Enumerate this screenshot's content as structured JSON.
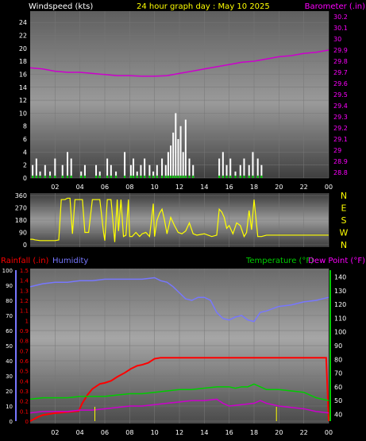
{
  "colors": {
    "background": "#000000",
    "title_yellow": "#ffff00",
    "wind_label": "#ffffff",
    "barometer": "#cc00cc",
    "barometer_axis": "#ff00ff",
    "humidity": "#7777ff",
    "rainfall": "#ff0000",
    "temperature": "#00cc00",
    "dewpoint": "#cc00cc",
    "wind_bars": "#ffffff",
    "gust_green": "#00cc00",
    "direction": "#ffff00"
  },
  "header": {
    "wind_label": "Windspeed (kts)",
    "title": "24 hour graph day : May 10 2025",
    "baro_label": "Barometer (.in)"
  },
  "bottom_header": {
    "rain_label": "Rainfall (.in)",
    "humidity_label": "Humidity",
    "temp_label": "Temperature (°F)",
    "dew_label": "Dew Point (°F)"
  },
  "chart_data": [
    {
      "type": "bar",
      "panel": "wind_baro",
      "x_ticks": [
        "02",
        "04",
        "06",
        "08",
        "10",
        "12",
        "14",
        "16",
        "18",
        "20",
        "22",
        "00"
      ],
      "y_left": {
        "label": "Windspeed (kts)",
        "ticks": [
          "0",
          "2",
          "4",
          "6",
          "8",
          "10",
          "12",
          "14",
          "16",
          "18",
          "20",
          "22",
          "24"
        ],
        "ylim": [
          0,
          25
        ]
      },
      "y_right": {
        "label": "Barometer (.in)",
        "ticks": [
          "28.8",
          "28.9",
          "29",
          "29.1",
          "29.2",
          "29.3",
          "29.4",
          "29.5",
          "29.6",
          "29.7",
          "29.8",
          "29.9",
          "30",
          "30.1",
          "30.2"
        ],
        "ylim": [
          28.75,
          30.25
        ]
      },
      "series": [
        {
          "name": "Windspeed (kts)",
          "kind": "bars",
          "x_hours": [
            0.2,
            0.5,
            0.8,
            1.2,
            1.6,
            2.0,
            2.6,
            3.0,
            3.3,
            4.1,
            4.4,
            5.3,
            5.6,
            6.2,
            6.5,
            6.9,
            7.6,
            8.1,
            8.3,
            8.6,
            8.9,
            9.2,
            9.6,
            9.9,
            10.2,
            10.6,
            10.9,
            11.1,
            11.3,
            11.5,
            11.7,
            11.9,
            12.1,
            12.3,
            12.5,
            12.8,
            13.1,
            15.2,
            15.5,
            15.8,
            16.1,
            16.5,
            16.9,
            17.2,
            17.6,
            17.9,
            18.3,
            18.6
          ],
          "values": [
            2,
            3,
            1,
            2,
            1,
            3,
            2,
            4,
            3,
            1,
            2,
            2,
            1,
            3,
            2,
            1,
            4,
            2,
            3,
            1,
            2,
            3,
            2,
            1,
            2,
            3,
            2,
            4,
            5,
            7,
            10,
            6,
            8,
            4,
            9,
            3,
            2,
            3,
            4,
            2,
            3,
            1,
            2,
            3,
            2,
            4,
            3,
            2
          ]
        },
        {
          "name": "Barometer (.in)",
          "kind": "line",
          "x_hours": [
            0,
            1,
            2,
            3,
            4,
            5,
            6,
            7,
            8,
            9,
            10,
            11,
            12,
            13,
            14,
            15,
            16,
            17,
            18,
            19,
            20,
            21,
            22,
            23,
            24
          ],
          "values": [
            29.74,
            29.73,
            29.71,
            29.7,
            29.7,
            29.69,
            29.68,
            29.67,
            29.67,
            29.665,
            29.665,
            29.67,
            29.69,
            29.71,
            29.73,
            29.75,
            29.77,
            29.79,
            29.8,
            29.82,
            29.84,
            29.85,
            29.87,
            29.88,
            29.9
          ]
        }
      ]
    },
    {
      "type": "line",
      "panel": "direction",
      "y_left_ticks": [
        "0",
        "90",
        "180",
        "270",
        "360"
      ],
      "y_right_labels": [
        "N",
        "W",
        "S",
        "E",
        "N"
      ],
      "ylim": [
        0,
        360
      ],
      "series": [
        {
          "name": "Wind direction",
          "x_hours": [
            0.0,
            0.2,
            0.4,
            0.8,
            1.2,
            1.6,
            2.0,
            2.3,
            2.5,
            2.8,
            3.0,
            3.2,
            3.4,
            3.6,
            3.9,
            4.2,
            4.4,
            4.7,
            5.0,
            5.3,
            5.6,
            5.9,
            6.0,
            6.2,
            6.5,
            6.8,
            7.0,
            7.1,
            7.3,
            7.5,
            7.7,
            7.9,
            8.0,
            8.2,
            8.5,
            8.8,
            9.0,
            9.3,
            9.6,
            9.9,
            10.0,
            10.2,
            10.4,
            10.6,
            10.8,
            11.0,
            11.3,
            11.6,
            11.9,
            12.2,
            12.5,
            12.8,
            13.1,
            13.4,
            14.0,
            14.6,
            15.0,
            15.2,
            15.4,
            15.6,
            15.8,
            16.0,
            16.3,
            16.6,
            16.9,
            17.2,
            17.4,
            17.6,
            17.8,
            18.0,
            18.3,
            18.6,
            19.0,
            19.6,
            20.0,
            21.0,
            22.0,
            23.0,
            24.0
          ],
          "values": [
            40,
            40,
            35,
            30,
            30,
            30,
            30,
            35,
            330,
            330,
            340,
            340,
            80,
            330,
            330,
            330,
            90,
            90,
            330,
            330,
            330,
            90,
            30,
            330,
            330,
            20,
            330,
            100,
            330,
            60,
            70,
            330,
            60,
            60,
            90,
            60,
            80,
            90,
            60,
            300,
            60,
            180,
            230,
            260,
            180,
            80,
            200,
            140,
            90,
            80,
            100,
            160,
            80,
            70,
            80,
            60,
            70,
            260,
            240,
            200,
            120,
            140,
            80,
            160,
            140,
            60,
            90,
            250,
            110,
            330,
            60,
            60,
            70,
            70,
            70,
            70,
            70,
            70,
            70
          ]
        }
      ]
    },
    {
      "type": "line",
      "panel": "temp_humidity_rain",
      "y_left_humidity": {
        "label": "Humidity",
        "ticks": [
          "0",
          "10",
          "20",
          "30",
          "40",
          "50",
          "60",
          "70",
          "80",
          "90",
          "100"
        ],
        "ylim": [
          0,
          100
        ]
      },
      "y_left_rain": {
        "label": "Rainfall (.in)",
        "ticks": [
          "0",
          "0.1",
          "0.2",
          "0.3",
          "0.4",
          "0.5",
          "0.6",
          "0.7",
          "0.8",
          "0.9",
          "1",
          "1.1",
          "1.2",
          "1.3",
          "1.4",
          "1.5"
        ],
        "ylim": [
          0,
          1.5
        ]
      },
      "y_right_temp": {
        "label": "Temperature (°F)",
        "ticks": [
          "40",
          "50",
          "60",
          "70",
          "80",
          "90",
          "100",
          "110",
          "120",
          "130",
          "140"
        ],
        "ylim": [
          35,
          145
        ]
      },
      "series": [
        {
          "name": "Humidity",
          "x_hours": [
            0,
            1,
            2,
            3,
            4,
            5,
            6,
            7,
            8,
            9,
            10,
            10.5,
            11,
            11.5,
            12,
            12.5,
            13,
            13.5,
            14,
            14.5,
            15,
            15.5,
            16,
            16.5,
            17,
            17.5,
            18,
            18.5,
            19,
            20,
            21,
            22,
            23,
            24
          ],
          "values": [
            89,
            91,
            92,
            92,
            93,
            93,
            94,
            94,
            94,
            94,
            95,
            93,
            92,
            89,
            85,
            81,
            80,
            82,
            82,
            80,
            72,
            68,
            67,
            69,
            70,
            67,
            66,
            72,
            73,
            76,
            77,
            79,
            80,
            82
          ]
        },
        {
          "name": "Rainfall (.in)",
          "x_hours": [
            0,
            0.3,
            0.6,
            1.0,
            1.5,
            2.0,
            3.0,
            3.9,
            4.2,
            4.6,
            5.0,
            5.6,
            6.0,
            6.5,
            7.0,
            7.6,
            8.1,
            8.6,
            9.0,
            9.5,
            10.0,
            10.5,
            11.0,
            12.0,
            14.0,
            16.0,
            18.0,
            20.0,
            22.0,
            23.8,
            24.0
          ],
          "values": [
            0,
            0.02,
            0.04,
            0.06,
            0.07,
            0.08,
            0.09,
            0.1,
            0.18,
            0.26,
            0.32,
            0.37,
            0.38,
            0.4,
            0.44,
            0.48,
            0.52,
            0.55,
            0.56,
            0.58,
            0.62,
            0.63,
            0.63,
            0.63,
            0.63,
            0.63,
            0.63,
            0.63,
            0.63,
            0.63,
            0
          ]
        },
        {
          "name": "Temperature (°F)",
          "x_hours": [
            0,
            1,
            2,
            3,
            4,
            5,
            6,
            7,
            8,
            9,
            10,
            11,
            12,
            13,
            14,
            15,
            16,
            16.5,
            17,
            17.5,
            18,
            18.5,
            19,
            20,
            21,
            22,
            23,
            24
          ],
          "values": [
            51,
            52,
            52,
            52,
            53,
            53,
            53,
            54,
            55,
            55,
            56,
            57,
            58,
            58,
            59,
            60,
            60,
            59,
            60,
            60,
            62,
            60,
            58,
            58,
            57,
            56,
            52,
            50
          ]
        },
        {
          "name": "Dew Point (°F)",
          "x_hours": [
            0,
            1,
            2,
            3,
            4,
            5,
            6,
            7,
            8,
            9,
            10,
            11,
            12,
            13,
            14,
            15,
            15.5,
            16,
            17,
            18,
            18.5,
            19,
            20,
            21,
            22,
            23,
            24
          ],
          "values": [
            41,
            42,
            42,
            42,
            43,
            43,
            44,
            45,
            46,
            46,
            47,
            48,
            49,
            50,
            50,
            51,
            48,
            46,
            47,
            48,
            50,
            48,
            46,
            45,
            44,
            42,
            41
          ]
        }
      ]
    }
  ],
  "x_axis_labels": [
    "02",
    "04",
    "06",
    "08",
    "10",
    "12",
    "14",
    "16",
    "18",
    "20",
    "22",
    "00"
  ]
}
